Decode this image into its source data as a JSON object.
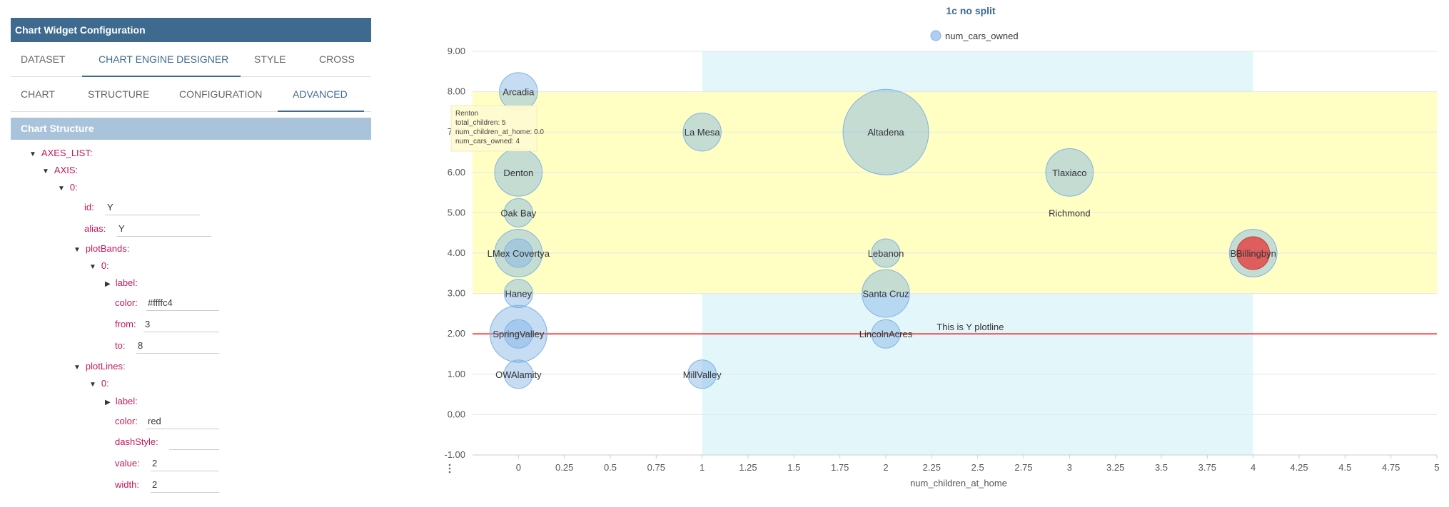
{
  "panel": {
    "title": "Chart Widget Configuration",
    "tabs": [
      "DATASET",
      "CHART ENGINE DESIGNER",
      "STYLE",
      "CROSS"
    ],
    "subtabs": [
      "CHART",
      "STRUCTURE",
      "CONFIGURATION",
      "ADVANCED"
    ],
    "section_title": "Chart Structure",
    "tree": {
      "axes_list": "AXES_LIST:",
      "axis": "AXIS:",
      "idx0": "0:",
      "id_key": "id:",
      "id_val": "Y",
      "alias_key": "alias:",
      "alias_val": "Y",
      "plotbands": "plotBands:",
      "pb_idx": "0:",
      "pb_label": "label:",
      "pb_color_key": "color:",
      "pb_color_val": "#ffffc4",
      "pb_from_key": "from:",
      "pb_from_val": "3",
      "pb_to_key": "to:",
      "pb_to_val": "8",
      "plotlines": "plotLines:",
      "pl_idx": "0:",
      "pl_label": "label:",
      "pl_color_key": "color:",
      "pl_color_val": "red",
      "pl_dash_key": "dashStyle:",
      "pl_dash_val": "",
      "pl_value_key": "value:",
      "pl_value_val": "2",
      "pl_width_key": "width:",
      "pl_width_val": "2"
    }
  },
  "colors": {
    "header": "#3e6a8f",
    "section": "#a8c3da",
    "key": "#c2185b",
    "band_y": "#ffffc4",
    "band_x": "#e3f7fb",
    "bubble": "#7fb2e5",
    "highlight": "#e05050"
  },
  "chart_data": {
    "type": "scatter",
    "title": "1c no split",
    "legend": {
      "name": "num_cars_owned",
      "placement": "top-center"
    },
    "xlabel": "num_children_at_home",
    "ylabel": "",
    "xlim": [
      -0.25,
      5
    ],
    "ylim": [
      -1,
      9
    ],
    "xticks": [
      "0",
      "0.25",
      "0.5",
      "0.75",
      "1",
      "1.25",
      "1.5",
      "1.75",
      "2",
      "2.25",
      "2.5",
      "2.75",
      "3",
      "3.25",
      "3.5",
      "3.75",
      "4",
      "4.25",
      "4.5",
      "4.75",
      "5"
    ],
    "yticks": [
      "-1.00",
      "0.00",
      "1.00",
      "2.00",
      "3.00",
      "4.00",
      "5.00",
      "6.00",
      "7.00",
      "8.00",
      "9.00"
    ],
    "plot_band_y": {
      "from": 3,
      "to": 8
    },
    "plot_band_x": {
      "from": 1,
      "to": 4
    },
    "plot_line": {
      "value": 2,
      "label": "This is Y plotline",
      "color": "red"
    },
    "points": [
      {
        "x": 0,
        "y": 8,
        "z": 3,
        "name": "Arcadia"
      },
      {
        "x": 0,
        "y": 6,
        "z": 4,
        "name": "Denton"
      },
      {
        "x": 0,
        "y": 5,
        "z": 2,
        "name": "Oak Bay"
      },
      {
        "x": 0,
        "y": 4,
        "z": 4,
        "name": "LMex Covertya"
      },
      {
        "x": 0,
        "y": 4,
        "z": 2,
        "name": ""
      },
      {
        "x": 0,
        "y": 3,
        "z": 2,
        "name": "Haney"
      },
      {
        "x": 0,
        "y": 2,
        "z": 5,
        "name": "SpringValley"
      },
      {
        "x": 0,
        "y": 2,
        "z": 2,
        "name": ""
      },
      {
        "x": 0,
        "y": 1,
        "z": 2,
        "name": "OWAlamity"
      },
      {
        "x": 1,
        "y": 7,
        "z": 3,
        "name": "La Mesa"
      },
      {
        "x": 1,
        "y": 1,
        "z": 2,
        "name": "MillValley"
      },
      {
        "x": 2,
        "y": 7,
        "z": 8,
        "name": "Altadena"
      },
      {
        "x": 2,
        "y": 4,
        "z": 2,
        "name": "Lebanon"
      },
      {
        "x": 2,
        "y": 3,
        "z": 4,
        "name": "Santa Cruz"
      },
      {
        "x": 2,
        "y": 2,
        "z": 2,
        "name": "LincolnAcres"
      },
      {
        "x": 3,
        "y": 6,
        "z": 4,
        "name": "Tlaxiaco"
      },
      {
        "x": 4,
        "y": 4,
        "z": 4,
        "name": "BBillingbyn"
      }
    ],
    "annotations": [
      "Richmond"
    ],
    "tooltip": {
      "lines": [
        "Renton",
        "total_children: 5",
        "num_children_at_home: 0.0",
        "num_cars_owned: 4"
      ]
    }
  }
}
